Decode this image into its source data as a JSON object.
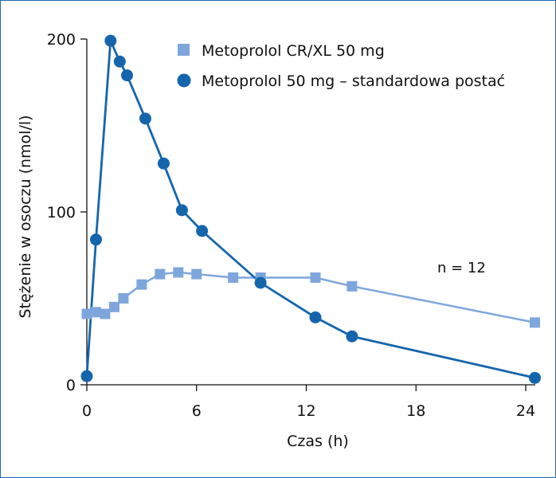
{
  "chart_data": {
    "type": "line",
    "title": "",
    "xlabel": "Czas (h)",
    "ylabel": "Stężenie w osoczu (nmol/l)",
    "xlim": [
      0,
      24
    ],
    "ylim": [
      0,
      200
    ],
    "x_ticks": [
      0,
      6,
      12,
      18,
      24
    ],
    "y_ticks": [
      0,
      100,
      200
    ],
    "grid": false,
    "legend_position": "top",
    "annotation": "n = 12",
    "series": [
      {
        "name": "Metoprolol CR/XL 50 mg",
        "marker": "square",
        "color": "#7ea6dc",
        "x": [
          0,
          0.5,
          1,
          1.5,
          2,
          3,
          4,
          5,
          6,
          8,
          9.5,
          12.5,
          14.5,
          24.5
        ],
        "y": [
          41,
          42,
          41,
          45,
          50,
          58,
          64,
          65,
          64,
          62,
          62,
          62,
          57,
          36
        ]
      },
      {
        "name": "Metoprolol 50 mg – standardowa postać",
        "marker": "circle",
        "color": "#1565ad",
        "x": [
          0,
          0.5,
          1.3,
          1.8,
          2.2,
          3.2,
          4.2,
          5.2,
          6.3,
          9.5,
          12.5,
          14.5,
          24.5
        ],
        "y": [
          5,
          84,
          199,
          187,
          179,
          154,
          128,
          101,
          89,
          59,
          39,
          28,
          4
        ]
      }
    ]
  }
}
